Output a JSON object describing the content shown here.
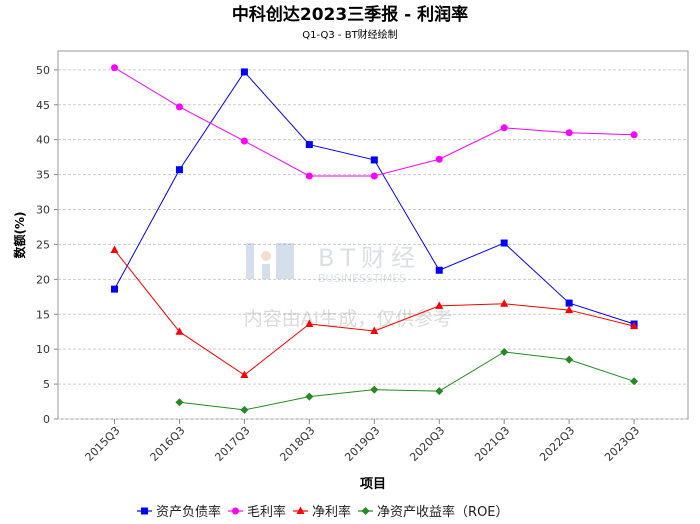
{
  "chart_data": {
    "type": "line",
    "title": "中科创达2023三季报 - 利润率",
    "subtitle": "Q1-Q3 - BT财经绘制",
    "xlabel": "项目",
    "ylabel": "数额(%)",
    "ylim": [
      0,
      52.7
    ],
    "yticks": [
      0,
      5,
      10,
      15,
      20,
      25,
      30,
      35,
      40,
      45,
      50
    ],
    "grid": true,
    "legend_position": "bottom",
    "categories": [
      "2015Q3",
      "2016Q3",
      "2017Q3",
      "2018Q3",
      "2019Q3",
      "2020Q3",
      "2021Q3",
      "2022Q3",
      "2023Q3"
    ],
    "series": [
      {
        "name": "资产负债率",
        "color": "#0000ff",
        "marker": "square",
        "values": [
          18.6,
          35.7,
          49.7,
          39.3,
          37.1,
          21.3,
          25.2,
          16.6,
          13.6
        ]
      },
      {
        "name": "毛利率",
        "color": "#ff00ff",
        "marker": "circle",
        "values": [
          50.3,
          44.7,
          39.8,
          34.8,
          34.8,
          37.2,
          41.7,
          41.0,
          40.7
        ]
      },
      {
        "name": "净利率",
        "color": "#ff0000",
        "marker": "triangle",
        "values": [
          24.2,
          12.5,
          6.3,
          13.6,
          12.6,
          16.2,
          16.5,
          15.6,
          13.3
        ]
      },
      {
        "name": "净资产收益率（ROE）",
        "color": "#228b22",
        "marker": "diamond",
        "values": [
          null,
          2.4,
          1.3,
          3.2,
          4.2,
          4.0,
          9.6,
          8.5,
          5.4
        ]
      }
    ]
  },
  "watermark": {
    "brand": "BT财经",
    "brand_en": "BUSINESSTIMES",
    "notice": "内容由AI生成，仅供参考"
  }
}
